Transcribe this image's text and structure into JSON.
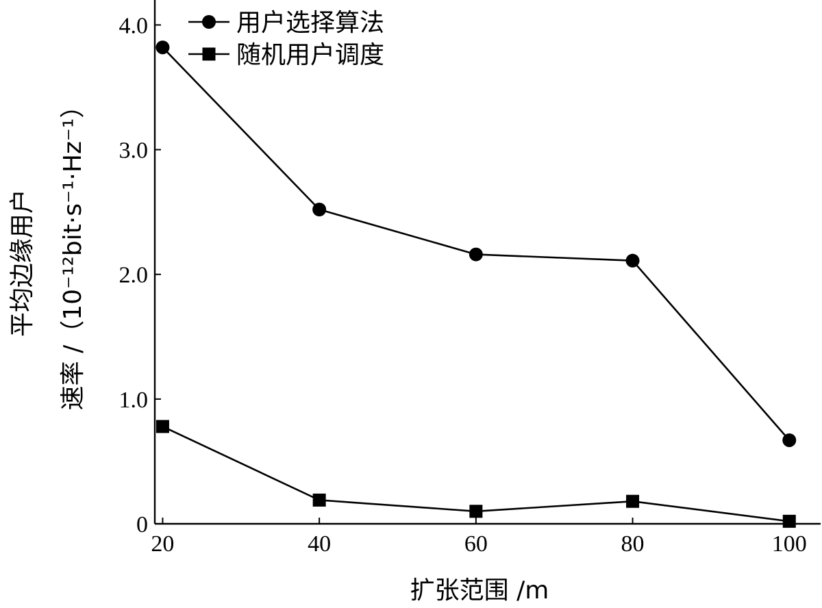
{
  "chart_data": {
    "type": "line",
    "x": [
      20,
      40,
      60,
      80,
      100
    ],
    "xlim": [
      19,
      104
    ],
    "ylim": [
      0,
      4.2
    ],
    "x_ticks": [
      "20",
      "40",
      "60",
      "80",
      "100"
    ],
    "y_ticks": [
      {
        "value": 0,
        "label": "0"
      },
      {
        "value": 1.0,
        "label": "1.0"
      },
      {
        "value": 2.0,
        "label": "2.0"
      },
      {
        "value": 3.0,
        "label": "3.0"
      },
      {
        "value": 4.0,
        "label": "4.0"
      }
    ],
    "xlabel": "扩张范围 /m",
    "ylabel_line1": "平均边缘用户",
    "ylabel_line2": "速率 /（10⁻¹²bit·s⁻¹·Hz⁻¹）",
    "grid": false,
    "legend_position": "top-left",
    "series": [
      {
        "name": "用户选择算法",
        "marker": "circle",
        "color": "#000000",
        "values": [
          3.82,
          2.52,
          2.16,
          2.11,
          0.67
        ]
      },
      {
        "name": "随机用户调度",
        "marker": "square",
        "color": "#000000",
        "values": [
          0.78,
          0.19,
          0.1,
          0.18,
          0.02
        ]
      }
    ]
  }
}
